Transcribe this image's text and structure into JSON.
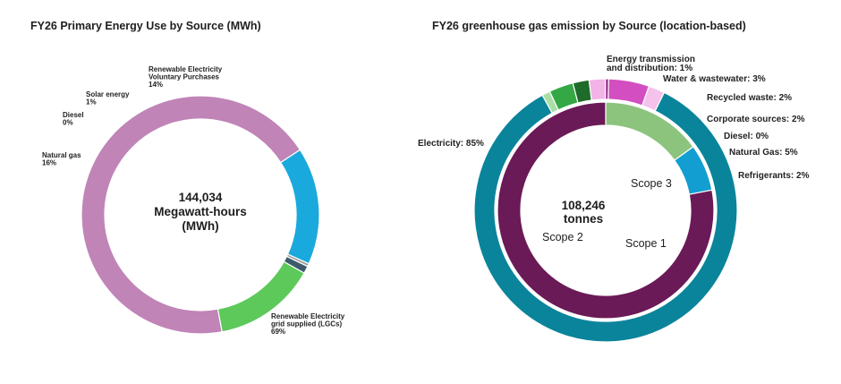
{
  "chart_data": [
    {
      "type": "pie",
      "title": "FY26 Primary Energy Use by Source (MWh)",
      "center_text": [
        "144,034",
        "Megawatt-hours",
        "(MWh)"
      ],
      "slices": [
        {
          "label": [
            "Renewable Electricity",
            "grid supplied (LGCs)",
            "69%"
          ],
          "value": 69,
          "color": "#c084b7"
        },
        {
          "label": [
            "Natural gas",
            "16%"
          ],
          "value": 16,
          "color": "#1aa9dc"
        },
        {
          "label": [
            "Diesel",
            "0%"
          ],
          "value": 0.4,
          "color": "#9e9e9e"
        },
        {
          "label": [
            "Solar energy",
            "1%"
          ],
          "value": 1,
          "color": "#3d5a6c"
        },
        {
          "label": [
            "Renewable Electricity",
            "Voluntary Purchases",
            "14%"
          ],
          "value": 14,
          "color": "#5cc95a"
        }
      ]
    },
    {
      "type": "pie",
      "title": "FY26 greenhouse gas emission by Source (location-based)",
      "center_text": [
        "108,246",
        "tonnes"
      ],
      "outer_slices": [
        {
          "label": [
            "Electricity: 85%"
          ],
          "value": 85,
          "color": "#0a849b"
        },
        {
          "label": [
            "Energy transmission",
            "and distribution: 1%"
          ],
          "value": 1,
          "color": "#a9dfa6"
        },
        {
          "label": [
            "Water & wastewater: 3%"
          ],
          "value": 3,
          "color": "#33a845"
        },
        {
          "label": [
            "Recycled waste: 2%"
          ],
          "value": 2,
          "color": "#1f6b2a"
        },
        {
          "label": [
            "Corporate sources: 2%"
          ],
          "value": 2,
          "color": "#f2b3e6"
        },
        {
          "label": [
            "Diesel: 0%"
          ],
          "value": 0.4,
          "color": "#8e2b86"
        },
        {
          "label": [
            "Natural Gas: 5%"
          ],
          "value": 5,
          "color": "#d34fc1"
        },
        {
          "label": [
            "Refrigerants: 2%"
          ],
          "value": 2,
          "color": "#f4c2ea"
        }
      ],
      "inner_slices": [
        {
          "label": "Scope 3",
          "value": 15,
          "color": "#8cc47e"
        },
        {
          "label": "Scope 1",
          "value": 7,
          "color": "#139ed1"
        },
        {
          "label": "Scope 2",
          "value": 78,
          "color": "#6a1a56"
        }
      ]
    }
  ]
}
